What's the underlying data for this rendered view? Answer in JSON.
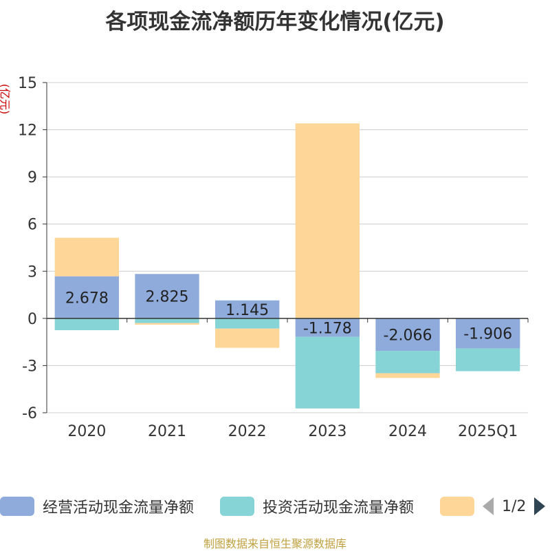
{
  "title": "各项现金流净额历年变化情况(亿元)",
  "unit_label": "(亿元)",
  "source": "制图数据来自恒生聚源数据库",
  "legend": {
    "items": [
      {
        "label": "经营活动现金流量净额",
        "color": "#8eabdb"
      },
      {
        "label": "投资活动现金流量净额",
        "color": "#86d4d6"
      },
      {
        "label": "",
        "color": "#fdd698"
      }
    ],
    "page": "1/2"
  },
  "chart_data": {
    "type": "bar",
    "stacked": true,
    "categories": [
      "2020",
      "2021",
      "2022",
      "2023",
      "2024",
      "2025Q1"
    ],
    "series": [
      {
        "name": "经营活动现金流量净额",
        "color": "#8eabdb",
        "values": [
          2.678,
          2.825,
          1.145,
          -1.178,
          -2.066,
          -1.906
        ],
        "labels": [
          "2.678",
          "2.825",
          "1.145",
          "-1.178",
          "-2.066",
          "-1.906"
        ]
      },
      {
        "name": "投资活动现金流量净额",
        "color": "#86d4d6",
        "values": [
          -0.75,
          -0.3,
          -0.65,
          -4.55,
          -1.42,
          -1.45
        ]
      },
      {
        "color": "#fdd698",
        "values": [
          2.45,
          -0.1,
          -1.22,
          12.4,
          -0.3,
          0.0
        ]
      }
    ],
    "ylim": [
      -6,
      15
    ],
    "yticks": [
      -6,
      -3,
      0,
      3,
      6,
      9,
      12,
      15
    ],
    "grid": true,
    "legend_position": "bottom"
  }
}
